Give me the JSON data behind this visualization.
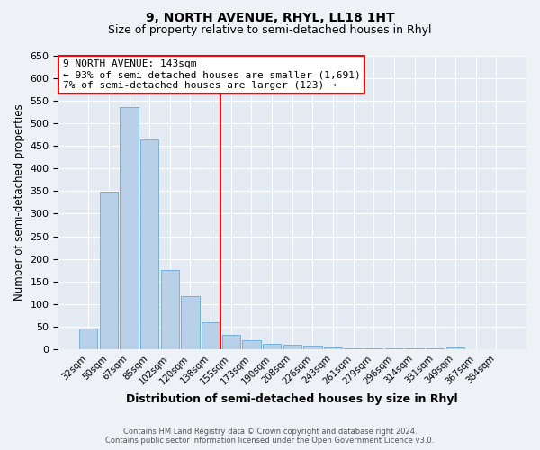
{
  "title": "9, NORTH AVENUE, RHYL, LL18 1HT",
  "subtitle": "Size of property relative to semi-detached houses in Rhyl",
  "xlabel": "Distribution of semi-detached houses by size in Rhyl",
  "ylabel": "Number of semi-detached properties",
  "bin_labels": [
    "32sqm",
    "50sqm",
    "67sqm",
    "85sqm",
    "102sqm",
    "120sqm",
    "138sqm",
    "155sqm",
    "173sqm",
    "190sqm",
    "208sqm",
    "226sqm",
    "243sqm",
    "261sqm",
    "279sqm",
    "296sqm",
    "314sqm",
    "331sqm",
    "349sqm",
    "367sqm",
    "384sqm"
  ],
  "bar_values": [
    46,
    348,
    535,
    463,
    175,
    118,
    60,
    33,
    20,
    13,
    10,
    8,
    5,
    3,
    3,
    2,
    2,
    2,
    5,
    1,
    1
  ],
  "bar_color": "#b8d0e8",
  "bar_edge_color": "#6aaad4",
  "vline_x_index": 7,
  "vline_color": "red",
  "ylim": [
    0,
    650
  ],
  "yticks": [
    0,
    50,
    100,
    150,
    200,
    250,
    300,
    350,
    400,
    450,
    500,
    550,
    600,
    650
  ],
  "annotation_title": "9 NORTH AVENUE: 143sqm",
  "annotation_line1": "← 93% of semi-detached houses are smaller (1,691)",
  "annotation_line2": "7% of semi-detached houses are larger (123) →",
  "annotation_box_color": "white",
  "annotation_box_edge_color": "red",
  "footer_line1": "Contains HM Land Registry data © Crown copyright and database right 2024.",
  "footer_line2": "Contains public sector information licensed under the Open Government Licence v3.0.",
  "bg_color": "#eef2f7",
  "plot_bg_color": "#e4eaf2",
  "grid_color": "#ffffff",
  "title_fontsize": 10,
  "subtitle_fontsize": 9
}
